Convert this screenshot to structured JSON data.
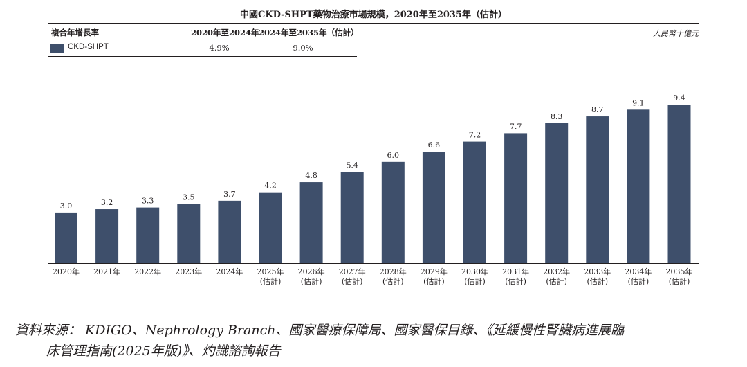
{
  "title": "中國CKD-SHPT藥物治療市場規模，2020年至2035年（估計）",
  "cagr_table": {
    "header_label": "複合年增長率",
    "col1_header": "2020年至2024年",
    "col2_header": "2024年至2035年（估計）",
    "row_label": "CKD-SHPT",
    "col1_value": "4.9%",
    "col2_value": "9.0%"
  },
  "unit": "人民幣十億元",
  "colors": {
    "bar": "#3e4f6b",
    "text": "#231f20"
  },
  "chart_data": {
    "type": "bar",
    "categories": [
      [
        "2020年"
      ],
      [
        "2021年"
      ],
      [
        "2022年"
      ],
      [
        "2023年"
      ],
      [
        "2024年"
      ],
      [
        "2025年",
        "(估計)"
      ],
      [
        "2026年",
        "(估計)"
      ],
      [
        "2027年",
        "(估計)"
      ],
      [
        "2028年",
        "(估計)"
      ],
      [
        "2029年",
        "(估計)"
      ],
      [
        "2030年",
        "(估計)"
      ],
      [
        "2031年",
        "(估計)"
      ],
      [
        "2032年",
        "(估計)"
      ],
      [
        "2033年",
        "(估計)"
      ],
      [
        "2034年",
        "(估計)"
      ],
      [
        "2035年",
        "(估計)"
      ]
    ],
    "series": [
      {
        "name": "CKD-SHPT",
        "values": [
          3.0,
          3.2,
          3.3,
          3.5,
          3.7,
          4.2,
          4.8,
          5.4,
          6.0,
          6.6,
          7.2,
          7.7,
          8.3,
          8.7,
          9.1,
          9.4
        ],
        "labels": [
          "3.0",
          "3.2",
          "3.3",
          "3.5",
          "3.7",
          "4.2",
          "4.8",
          "5.4",
          "6.0",
          "6.6",
          "7.2",
          "7.7",
          "8.3",
          "8.7",
          "9.1",
          "9.4"
        ]
      }
    ],
    "ylim": [
      0,
      9.4
    ],
    "grid": false,
    "legend": "top-left"
  },
  "source": {
    "line1": "資料來源： KDIGO、Nephrology Branch、國家醫療保障局、國家醫保目錄、《延緩慢性腎臟病進展臨",
    "line2": "床管理指南(2025年版)》、灼識諮詢報告"
  }
}
